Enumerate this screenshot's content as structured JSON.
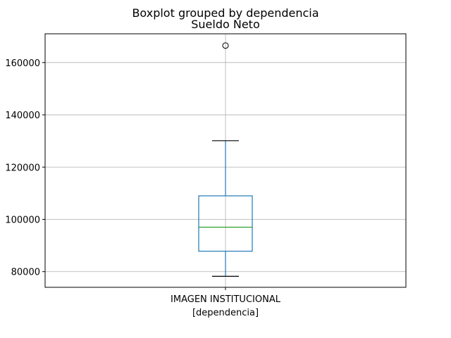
{
  "chart_data": {
    "type": "boxplot",
    "suptitle": "Boxplot grouped by dependencia",
    "title": "Sueldo Neto",
    "xlabel": "[dependencia]",
    "ylabel": "",
    "categories": [
      "IMAGEN INSTITUCIONAL"
    ],
    "ylim": [
      74000,
      171000
    ],
    "yticks": [
      80000,
      100000,
      120000,
      140000,
      160000
    ],
    "ytick_labels": [
      "80000",
      "100000",
      "120000",
      "140000",
      "160000"
    ],
    "grid": true,
    "boxes": [
      {
        "category": "IMAGEN INSTITUCIONAL",
        "whisker_low": 78200,
        "q1": 87800,
        "median": 97000,
        "q3": 109000,
        "whisker_high": 130100,
        "outliers": [
          166500
        ]
      }
    ],
    "colors": {
      "box": "#1f77b4",
      "median": "#2ca02c",
      "grid": "#b0b0b0",
      "caps": "#000000"
    }
  }
}
